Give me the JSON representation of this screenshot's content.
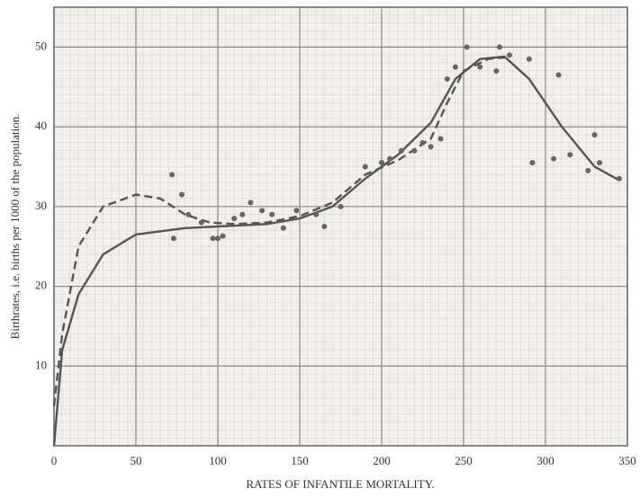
{
  "chart_data": {
    "type": "scatter",
    "xlabel": "RATES OF INFANTILE MORTALITY.",
    "ylabel": "Birthrates, i.e. births per 1000 of the population.",
    "xlim": [
      0,
      350
    ],
    "ylim": [
      0,
      55
    ],
    "xticks": [
      0,
      50,
      100,
      150,
      200,
      250,
      300,
      350
    ],
    "yticks": [
      10,
      20,
      30,
      40,
      50
    ],
    "grid": true,
    "series": [
      {
        "type": "line",
        "dashed": false,
        "color": "#555555",
        "x": [
          0,
          5,
          15,
          30,
          50,
          80,
          100,
          130,
          150,
          170,
          190,
          210,
          230,
          245,
          260,
          275,
          290,
          310,
          330,
          345
        ],
        "values": [
          0,
          12,
          19,
          24,
          26.5,
          27.3,
          27.5,
          27.8,
          28.5,
          30,
          33.5,
          36.5,
          40.5,
          46,
          48.5,
          48.8,
          46,
          40,
          35,
          33.3
        ]
      },
      {
        "type": "line",
        "dashed": true,
        "color": "#555555",
        "x": [
          0,
          5,
          15,
          30,
          50,
          65,
          80,
          95,
          110,
          130,
          150,
          170,
          190,
          210,
          230,
          240,
          250,
          265,
          275
        ],
        "values": [
          5,
          14,
          25,
          30,
          31.5,
          31,
          29,
          28,
          27.8,
          28,
          28.8,
          30.5,
          34,
          35.8,
          38.5,
          43,
          47,
          48.5,
          48.7
        ]
      },
      {
        "type": "scatter",
        "color": "#666666",
        "x": [
          72,
          73,
          78,
          82,
          90,
          97,
          100,
          103,
          110,
          115,
          120,
          127,
          133,
          140,
          148,
          160,
          165,
          175,
          190,
          200,
          205,
          212,
          220,
          225,
          230,
          236,
          240,
          245,
          252,
          260,
          270,
          272,
          278,
          290,
          292,
          305,
          308,
          315,
          326,
          330,
          333,
          345
        ],
        "values": [
          34,
          26,
          31.5,
          29,
          28,
          26,
          26,
          26.3,
          28.5,
          29,
          30.5,
          29.5,
          29,
          27.3,
          29.5,
          29,
          27.5,
          30,
          35,
          35.5,
          36,
          37,
          37,
          38,
          37.5,
          38.5,
          46,
          47.5,
          50,
          47.5,
          47,
          50,
          49,
          48.5,
          35.5,
          36,
          46.5,
          36.5,
          34.5,
          39,
          35.5,
          33.5
        ]
      }
    ]
  }
}
